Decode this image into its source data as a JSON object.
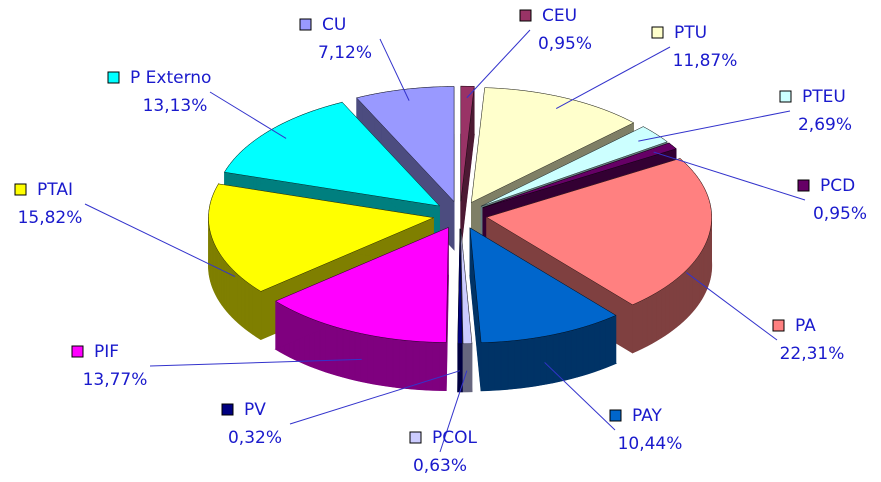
{
  "chart_data": {
    "type": "pie3d",
    "categories": [
      "CEU",
      "PTU",
      "PTEU",
      "PCD",
      "PA",
      "PAY",
      "PCOL",
      "PV",
      "PIF",
      "PTAI",
      "P Externo",
      "CU"
    ],
    "values": [
      0.95,
      11.87,
      2.69,
      0.95,
      22.31,
      10.44,
      0.63,
      0.32,
      13.77,
      15.82,
      13.13,
      7.12
    ],
    "value_labels": [
      "0,95%",
      "11,87%",
      "2,69%",
      "0,95%",
      "22,31%",
      "10,44%",
      "0,63%",
      "0,32%",
      "13,77%",
      "15,82%",
      "13,13%",
      "7,12%"
    ],
    "colors": [
      "#993366",
      "#ffffcc",
      "#ccffff",
      "#660066",
      "#ff8080",
      "#0066cc",
      "#ccccff",
      "#000080",
      "#ff00ff",
      "#ffff00",
      "#00ffff",
      "#9999ff"
    ]
  }
}
